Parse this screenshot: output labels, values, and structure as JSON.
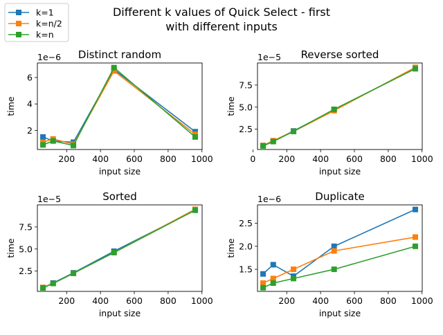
{
  "figure": {
    "title_lines": [
      "Different k values of Quick Select - first",
      "with different inputs"
    ]
  },
  "legend": {
    "location": "upper-left",
    "entries": [
      {
        "label": "k=1",
        "color": "#1f77b4"
      },
      {
        "label": "k=n/2",
        "color": "#ff7f0e"
      },
      {
        "label": "k=n",
        "color": "#2ca02c"
      }
    ]
  },
  "chart_data": [
    {
      "type": "line",
      "title": "Distinct random",
      "xlabel": "input size",
      "ylabel": "time",
      "offset_text": "1e−6",
      "xlim": [
        27,
        1001
      ],
      "ylim": [
        0.55,
        7.1
      ],
      "xticks": [
        200,
        400,
        600,
        800,
        1000
      ],
      "yticks": [
        2,
        4,
        6
      ],
      "ytick_labels": [
        "2",
        "4",
        "6"
      ],
      "x": [
        60,
        120,
        240,
        480,
        960
      ],
      "series": [
        {
          "name": "k=1",
          "color": "#1f77b4",
          "values": [
            1.5,
            1.2,
            1.1,
            6.6,
            1.9
          ]
        },
        {
          "name": "k=n/2",
          "color": "#ff7f0e",
          "values": [
            1.1,
            1.35,
            0.95,
            6.5,
            1.7
          ]
        },
        {
          "name": "k=n",
          "color": "#2ca02c",
          "values": [
            0.9,
            1.2,
            0.85,
            6.75,
            1.5
          ]
        }
      ]
    },
    {
      "type": "line",
      "title": "Reverse sorted",
      "xlabel": "input size",
      "ylabel": "time",
      "offset_text": "1e−5",
      "xlim": [
        27,
        1001
      ],
      "ylim": [
        0.2,
        10.0
      ],
      "xticks": [
        0,
        200,
        400,
        600,
        800,
        1000
      ],
      "yticks": [
        2.5,
        5.0,
        7.5
      ],
      "ytick_labels": [
        "2.5",
        "5.0",
        "7.5"
      ],
      "x": [
        60,
        120,
        240,
        480,
        960
      ],
      "series": [
        {
          "name": "k=1",
          "color": "#1f77b4",
          "values": [
            0.65,
            1.15,
            2.3,
            4.7,
            9.4
          ]
        },
        {
          "name": "k=n/2",
          "color": "#ff7f0e",
          "values": [
            0.65,
            1.2,
            2.25,
            4.6,
            9.5
          ]
        },
        {
          "name": "k=n",
          "color": "#2ca02c",
          "values": [
            0.6,
            1.1,
            2.25,
            4.75,
            9.35
          ]
        }
      ]
    },
    {
      "type": "line",
      "title": "Sorted",
      "xlabel": "input size",
      "ylabel": "time",
      "offset_text": "1e−5",
      "xlim": [
        27,
        1001
      ],
      "ylim": [
        0.2,
        10.0
      ],
      "xticks": [
        200,
        400,
        600,
        800,
        1000
      ],
      "yticks": [
        2.5,
        5.0,
        7.5
      ],
      "ytick_labels": [
        "2.5",
        "5.0",
        "7.5"
      ],
      "x": [
        60,
        120,
        240,
        480,
        960
      ],
      "series": [
        {
          "name": "k=1",
          "color": "#1f77b4",
          "values": [
            0.6,
            1.15,
            2.3,
            4.75,
            9.4
          ]
        },
        {
          "name": "k=n/2",
          "color": "#ff7f0e",
          "values": [
            0.65,
            1.1,
            2.25,
            4.6,
            9.5
          ]
        },
        {
          "name": "k=n",
          "color": "#2ca02c",
          "values": [
            0.6,
            1.1,
            2.25,
            4.6,
            9.4
          ]
        }
      ]
    },
    {
      "type": "line",
      "title": "Duplicate",
      "xlabel": "input size",
      "ylabel": "time",
      "offset_text": "1e−6",
      "xlim": [
        27,
        1001
      ],
      "ylim": [
        1.02,
        2.9
      ],
      "xticks": [
        200,
        400,
        600,
        800,
        1000
      ],
      "yticks": [
        1.5,
        2.0,
        2.5
      ],
      "ytick_labels": [
        "1.5",
        "2.0",
        "2.5"
      ],
      "x": [
        60,
        120,
        240,
        480,
        960
      ],
      "series": [
        {
          "name": "k=1",
          "color": "#1f77b4",
          "values": [
            1.4,
            1.6,
            1.35,
            2.0,
            2.8
          ]
        },
        {
          "name": "k=n/2",
          "color": "#ff7f0e",
          "values": [
            1.2,
            1.3,
            1.5,
            1.9,
            2.2
          ]
        },
        {
          "name": "k=n",
          "color": "#2ca02c",
          "values": [
            1.1,
            1.2,
            1.3,
            1.5,
            2.0
          ]
        }
      ]
    }
  ]
}
